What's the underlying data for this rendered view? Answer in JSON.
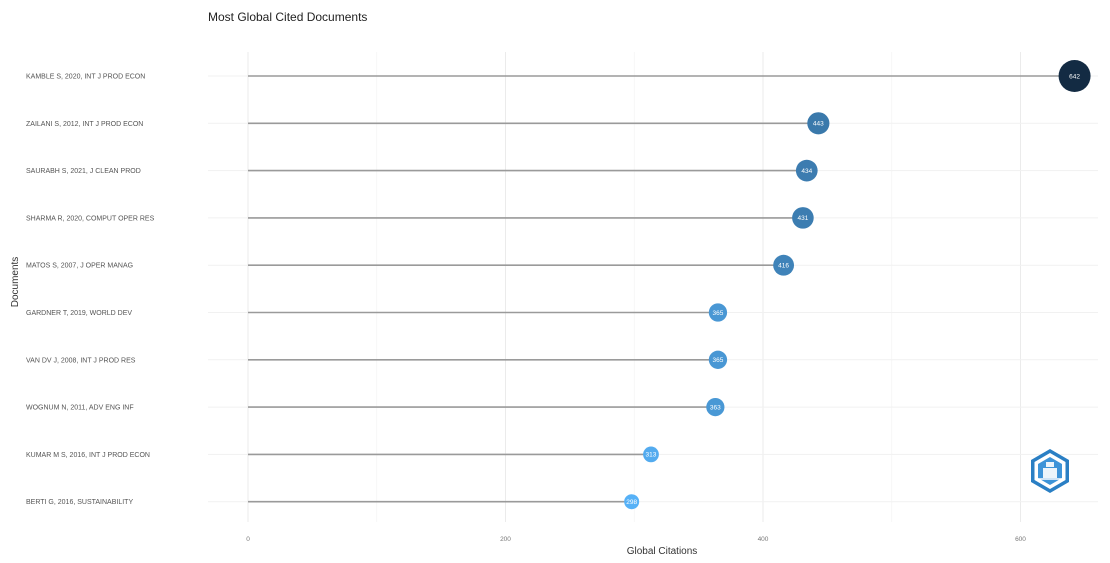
{
  "chart_data": {
    "type": "lollipop",
    "title": "Most Global Cited Documents",
    "xlabel": "Global Citations",
    "ylabel": "Documents",
    "xlim": [
      0,
      650
    ],
    "x_ticks": [
      0,
      200,
      400,
      600
    ],
    "grid": true,
    "categories": [
      "KAMBLE S, 2020, INT J PROD ECON",
      "ZAILANI S, 2012, INT J PROD ECON",
      "SAURABH S, 2021, J CLEAN PROD",
      "SHARMA R, 2020, COMPUT OPER RES",
      "MATOS S, 2007, J OPER MANAG",
      "GARDNER T, 2019, WORLD DEV",
      "VAN DV J, 2008, INT J PROD RES",
      "WOGNUM N, 2011, ADV ENG INF",
      "KUMAR M S, 2016, INT J PROD ECON",
      "BERTI G, 2016, SUSTAINABILITY"
    ],
    "values": [
      642,
      443,
      434,
      431,
      416,
      365,
      365,
      363,
      313,
      298
    ],
    "point_labels": [
      "642",
      "443",
      "434",
      "431",
      "416",
      "365",
      "365",
      "363",
      "313",
      "298"
    ],
    "color_scale": {
      "low": "#56b1f7",
      "high": "#132b43"
    }
  },
  "logo": {
    "name": "bibliometrix-logo-icon"
  }
}
